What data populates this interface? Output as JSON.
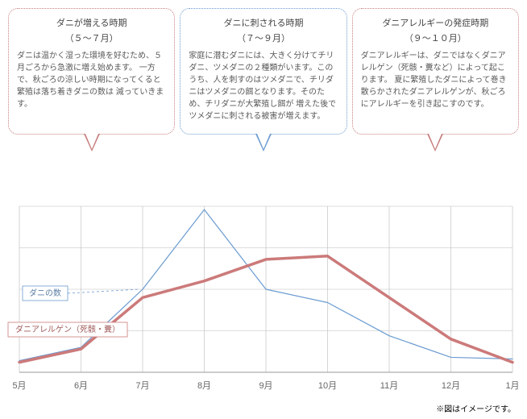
{
  "bubbles": [
    {
      "title": "ダニが増える時期",
      "period": "（５〜７月）",
      "color": "#c77e7e",
      "body": "ダニは温かく湿った環境を好むため、５月ごろから急激に増え始めます。\n一方で、秋ごろの涼しい時期になってくると繁殖は落ち着きダニの数は\n減っていきます。"
    },
    {
      "title": "ダニに刺される時期",
      "period": "（７〜９月）",
      "color": "#6b9bd1",
      "body": "家庭に潜むダニには、大きく分けてチリダニ、ツメダニの２種類がいます。このうち、人を刺すのはツメダニで、チリダニはツメダニの餌となります。そのため、チリダニが大繁殖し餌が\n増えた後でツメダニに刺される被害が増えます。"
    },
    {
      "title": "ダニアレルギーの発症時期",
      "period": "（９〜１０月）",
      "color": "#c77e7e",
      "body": "ダニアレルギーは、ダニではなくダニアレルゲン（死骸・糞など）によって起こります。\n夏に繁殖したダニによって巻き散らかされたダニアレルゲンが、秋ごろにアレルギーを引き起こすのです。"
    }
  ],
  "chart": {
    "type": "line",
    "categories": [
      "5月",
      "6月",
      "7月",
      "8月",
      "9月",
      "10月",
      "11月",
      "12月",
      "1月"
    ],
    "ylim": [
      0,
      100
    ],
    "grid_color": "#bbbbbb",
    "axis_color": "#999999",
    "background": "#ffffff",
    "label_fontsize": 11,
    "label_color": "#666666",
    "series": [
      {
        "name": "ダニの数",
        "color": "#6b9bd1",
        "width": 1.2,
        "dash": "none",
        "values": [
          7,
          15,
          50,
          98,
          50,
          42,
          22,
          9,
          8
        ],
        "legend_box_border": "#6b9bd1",
        "legend_line_dash": "3,3"
      },
      {
        "name": "ダニアレルゲン（死骸・糞）",
        "color": "#cc7a7a",
        "width": 3.5,
        "dash": "none",
        "values": [
          6,
          14,
          45,
          55,
          68,
          70,
          45,
          20,
          6
        ],
        "legend_box_border": "#cc7a7a",
        "legend_line_dash": "none"
      }
    ]
  },
  "note": "※図はイメージです。"
}
